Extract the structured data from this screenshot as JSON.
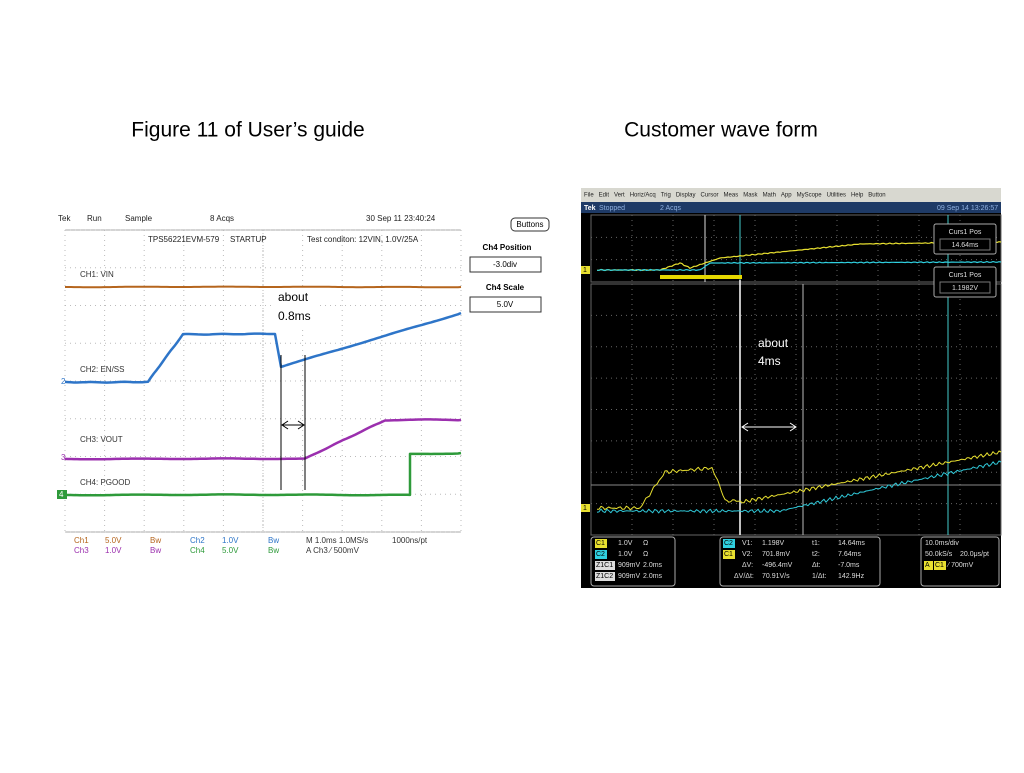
{
  "slide": {
    "left_title": "Figure 11 of User’s guide",
    "right_title": "Customer wave form",
    "left_scope": {
      "header": [
        "Tek",
        "Run",
        "Sample",
        "8 Acqs",
        "30 Sep 11 23:40:24"
      ],
      "subheader": [
        "TPS56221EVM-579",
        "STARTUP",
        "Test conditon: 12VIN, 1.0V/25A"
      ],
      "channel_labels": [
        "CH1: VIN",
        "CH2: EN/SS",
        "CH3: VOUT",
        "CH4: PGOOD"
      ],
      "markers": [
        "2",
        "3",
        "4"
      ],
      "annotation": [
        "about",
        "0.8ms"
      ],
      "side_panel": {
        "button": "Buttons",
        "position_label": "Ch4 Position",
        "position_value": "-3.0div",
        "scale_label": "Ch4 Scale",
        "scale_value": "5.0V"
      },
      "footer": [
        [
          "Ch1",
          "5.0V",
          "Bw",
          "Ch2",
          "1.0V",
          "Bw",
          "M 1.0ms 1.0MS/s",
          "1000ns/pt"
        ],
        [
          "Ch3",
          "1.0V",
          "Bw",
          "Ch4",
          "5.0V",
          "Bw",
          "A Ch3 ⁄ 500mV"
        ]
      ]
    },
    "right_scope": {
      "menu": [
        "File",
        "Edit",
        "Vert",
        "Horiz/Acq",
        "Trig",
        "Display",
        "Cursor",
        "Meas",
        "Mask",
        "Math",
        "App",
        "MyScope",
        "Utilities",
        "Help",
        "Button"
      ],
      "status": [
        "Tek",
        "Stopped",
        "2 Acqs",
        "09 Sep 14 13:26:57"
      ],
      "cursor_boxes": [
        [
          "Curs1 Pos",
          "14.64ms"
        ],
        [
          "Curs1 Pos",
          "1.1982V"
        ]
      ],
      "markers": [
        "1",
        "1"
      ],
      "annotation": [
        "about",
        "4ms"
      ],
      "channel_box": [
        [
          "C1",
          "1.0V",
          "Ω"
        ],
        [
          "C2",
          "1.0V",
          "Ω"
        ],
        [
          "Z1C1",
          "909mV",
          "2.0ms"
        ],
        [
          "Z1C2",
          "909mV",
          "2.0ms"
        ]
      ],
      "cursor_readout": [
        [
          "C2",
          "V1:",
          "1.198V",
          "t1:",
          "14.64ms"
        ],
        [
          "C1",
          "V2:",
          "701.8mV",
          "t2:",
          "7.64ms"
        ],
        [
          "ΔV:",
          "-496.4mV",
          "Δt:",
          "-7.0ms"
        ],
        [
          "ΔV/Δt:",
          "70.91V/s",
          "1/Δt:",
          "142.9Hz"
        ]
      ],
      "timebase": [
        [
          "10.0ms/div"
        ],
        [
          "50.0kS/s",
          "20.0μs/pt"
        ],
        [
          "A",
          "C1",
          "⁄ 700mV"
        ]
      ]
    }
  }
}
